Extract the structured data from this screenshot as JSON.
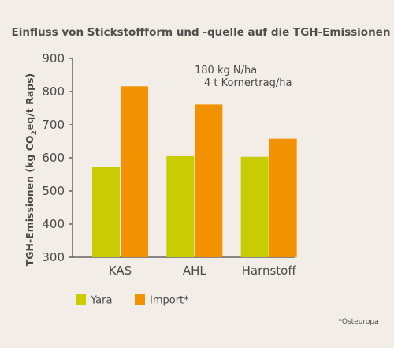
{
  "chart_data": {
    "type": "bar",
    "title": "Einfluss von Stickstoffform und -quelle auf die TGH-Emissionen",
    "ylabel": "TGH-Emissionen (kg CO2eq/t Raps)",
    "ylabel_parts": {
      "pre": "TGH-Emissionen (kg CO",
      "sub": "2",
      "post": "eq/t Raps)"
    },
    "xlabel": "",
    "categories": [
      "KAS",
      "AHL",
      "Harnstoff"
    ],
    "series": [
      {
        "name": "Yara",
        "color": "#c8cc00",
        "values": [
          573,
          605,
          603
        ]
      },
      {
        "name": "Import*",
        "color": "#f39200",
        "values": [
          816,
          761,
          658
        ]
      }
    ],
    "ylim": [
      300,
      900
    ],
    "yticks": [
      300,
      400,
      500,
      600,
      700,
      800,
      900
    ],
    "grid": false,
    "legend": "bottom-left",
    "annotations": [
      "180 kg N/ha",
      "4 t Kornertrag/ha"
    ],
    "footnote": "*Osteuropa",
    "colors": {
      "background": "#f2ede6",
      "axis": "#4a4a4a",
      "text": "#4a4a4a"
    }
  }
}
